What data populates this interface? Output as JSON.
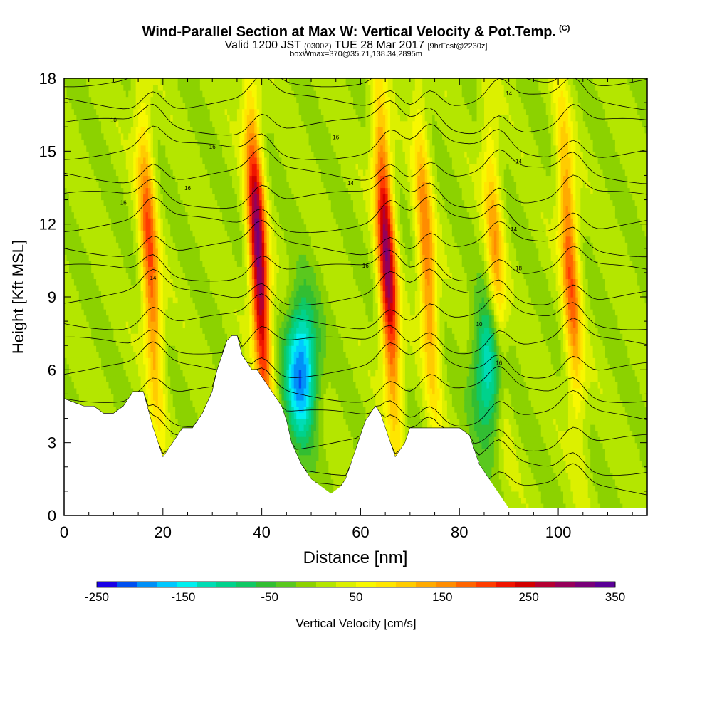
{
  "header": {
    "title_main": "Wind-Parallel Section at Max W: Vertical Velocity & Pot.Temp.",
    "title_tag": "(C)",
    "valid_main": "Valid 1200 JST",
    "valid_utc": "(0300Z)",
    "valid_date": "TUE 28 Mar 2017",
    "forecast_tag": "[9hrFcst@2230z]",
    "box_info": "boxWmax=370@35.71,138.34,2895m"
  },
  "chart_data": {
    "type": "heatmap",
    "title": "Wind-Parallel Section at Max W: Vertical Velocity & Pot.Temp.",
    "xlabel": "Distance [nm]",
    "ylabel": "Height [Kft MSL]",
    "xlim": [
      0,
      118
    ],
    "ylim": [
      0,
      18
    ],
    "x_ticks": [
      "0",
      "20",
      "40",
      "60",
      "80",
      "100"
    ],
    "x_tick_values": [
      0,
      20,
      40,
      60,
      80,
      100
    ],
    "y_ticks": [
      "0",
      "3",
      "6",
      "9",
      "12",
      "15",
      "18"
    ],
    "y_tick_values": [
      0,
      3,
      6,
      9,
      12,
      15,
      18
    ],
    "colorbar": {
      "label": "Vertical Velocity [cm/s]",
      "tick_labels": [
        "-250",
        "-150",
        "-50",
        "50",
        "150",
        "250",
        "350"
      ],
      "tick_values": [
        -250,
        -150,
        -50,
        50,
        150,
        250,
        350
      ],
      "range": [
        -250,
        350
      ],
      "colors": [
        "#1a00e6",
        "#0050f0",
        "#0090f8",
        "#00c8ff",
        "#00f0f0",
        "#00dcb4",
        "#00d28c",
        "#10c864",
        "#32be32",
        "#5ac81e",
        "#8cd200",
        "#b4e600",
        "#dcf000",
        "#f8f800",
        "#ffe600",
        "#ffcc00",
        "#ffaa00",
        "#ff8c00",
        "#ff6400",
        "#ff3c00",
        "#f01400",
        "#d20000",
        "#b40032",
        "#96005a",
        "#780078",
        "#5a0096"
      ]
    },
    "updrafts": [
      {
        "x": 18,
        "peak": 190
      },
      {
        "x": 40,
        "peak": 320
      },
      {
        "x": 66,
        "peak": 290
      },
      {
        "x": 74,
        "peak": 160
      },
      {
        "x": 88,
        "peak": 130
      },
      {
        "x": 103,
        "peak": 180
      }
    ],
    "downdrafts": [
      {
        "x": 48,
        "peak": -230
      },
      {
        "x": 86,
        "peak": -160
      }
    ],
    "terrain": {
      "x": [
        0,
        4,
        6,
        8,
        10,
        12,
        14,
        16,
        18,
        19,
        20,
        21,
        22,
        24,
        26,
        28,
        30,
        31,
        32,
        33,
        34,
        35,
        36,
        37,
        38,
        39,
        40,
        41,
        42,
        43,
        44,
        45,
        46,
        48,
        50,
        52,
        54,
        56,
        57,
        58,
        59,
        60,
        61,
        62,
        63,
        64,
        66,
        67,
        68,
        69,
        70,
        72,
        74,
        76,
        78,
        80,
        82,
        83,
        84,
        85,
        86,
        87,
        88,
        89,
        90,
        100,
        110,
        118
      ],
      "y": [
        4.8,
        4.5,
        4.5,
        4.2,
        4.2,
        4.5,
        5.1,
        5.1,
        3.6,
        3.0,
        2.4,
        2.7,
        3.0,
        3.6,
        3.6,
        4.2,
        5.1,
        6.0,
        6.6,
        7.2,
        7.4,
        7.4,
        6.6,
        6.3,
        6.0,
        6.0,
        5.7,
        5.4,
        5.1,
        4.8,
        4.5,
        3.9,
        3.0,
        2.1,
        1.5,
        1.2,
        0.9,
        1.2,
        1.5,
        2.1,
        2.7,
        3.3,
        3.9,
        4.2,
        4.5,
        4.2,
        3.0,
        2.4,
        2.7,
        3.0,
        3.6,
        3.6,
        3.6,
        3.6,
        3.6,
        3.6,
        3.3,
        2.7,
        2.1,
        1.8,
        1.5,
        1.2,
        0.9,
        0.6,
        0.3,
        0.3,
        0.3,
        0.3
      ]
    },
    "theta_contour_labels": [
      "10",
      "16",
      "16",
      "16",
      "14",
      "16",
      "14",
      "16",
      "14",
      "14",
      "14",
      "18",
      "10",
      "16"
    ],
    "theta_contour_levels": [
      2,
      4,
      6,
      8,
      10,
      12,
      14,
      16,
      18,
      20,
      22,
      24,
      26,
      28,
      30,
      32,
      34,
      36
    ]
  }
}
